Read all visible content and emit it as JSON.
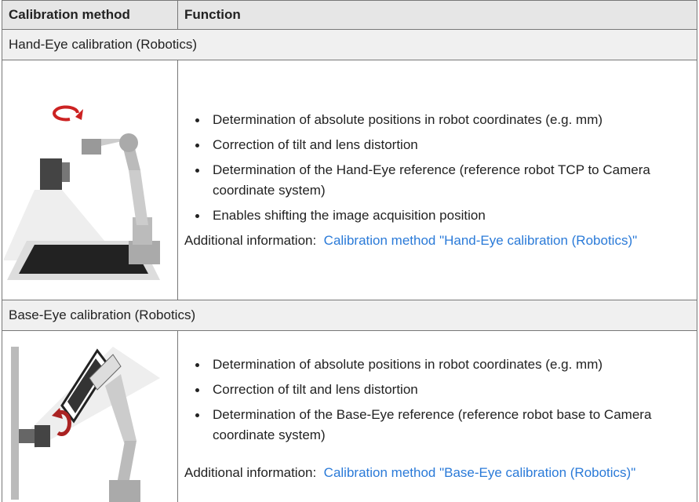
{
  "table": {
    "header": [
      "Calibration method",
      "Function"
    ],
    "sections": [
      {
        "title": "Hand-Eye calibration (Robotics)",
        "bullets": [
          "Determination of absolute positions in robot coordinates (e.g. mm)",
          "Correction of tilt and lens distortion",
          "Determination of the Hand-Eye reference (reference robot TCP to Camera coordinate system)",
          "Enables shifting the image acquisition position"
        ],
        "info_label": "Additional information:",
        "info_link": "Calibration method \"Hand-Eye calibration (Robotics)\""
      },
      {
        "title": "Base-Eye calibration (Robotics)",
        "bullets": [
          "Determination of absolute positions in robot coordinates (e.g. mm)",
          "Correction of tilt and lens distortion",
          "Determination of the Base-Eye reference (reference robot base to Camera coordinate system)"
        ],
        "info_label": "Additional information:",
        "info_link": "Calibration method \"Base-Eye calibration (Robotics)\""
      }
    ]
  }
}
